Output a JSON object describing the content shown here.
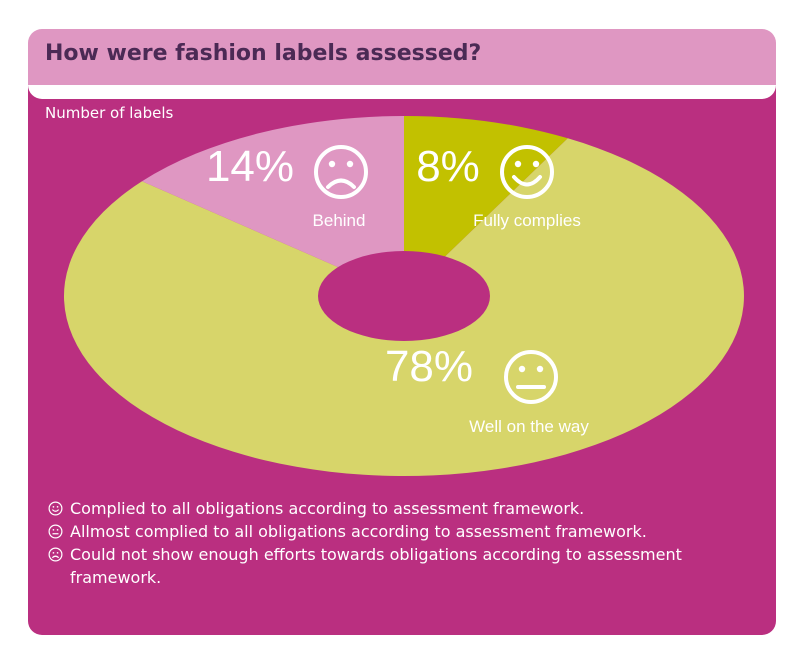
{
  "header": {
    "title": "How were fashion labels assessed?"
  },
  "chart_data": {
    "type": "pie",
    "unit_label": "Number of labels",
    "slices": [
      {
        "label": "Fully complies",
        "value": 8,
        "display": "8%",
        "color": "#c2c100",
        "face": "smiley-icon"
      },
      {
        "label": "Well on the way",
        "value": 78,
        "display": "78%",
        "color": "#d7d56a",
        "face": "neutral-face-icon"
      },
      {
        "label": "Behind",
        "value": 14,
        "display": "14%",
        "color": "#df97c2",
        "face": "frown-icon"
      }
    ]
  },
  "legend": [
    {
      "icon": "smiley-icon",
      "text": "Complied to all obligations according to assessment framework."
    },
    {
      "icon": "neutral-face-icon",
      "text": "Allmost complied to all obligations according to assessment framework."
    },
    {
      "icon": "frown-icon",
      "text": "Could not show enough efforts towards obligations according to assessment framework."
    }
  ]
}
